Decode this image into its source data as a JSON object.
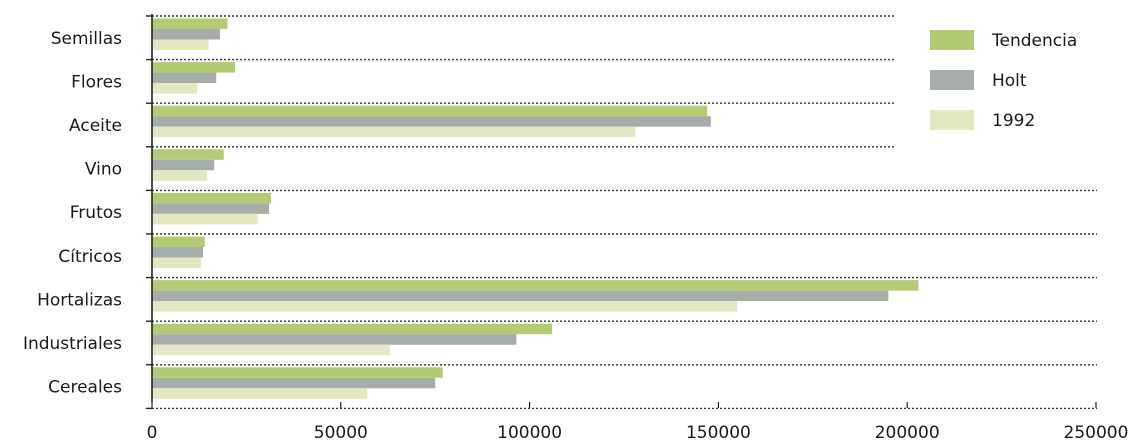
{
  "chart_data": {
    "type": "bar",
    "orientation": "horizontal",
    "categories": [
      "Semillas",
      "Flores",
      "Aceite",
      "Vino",
      "Frutos",
      "Cítricos",
      "Hortalizas",
      "Industriales",
      "Cereales"
    ],
    "series": [
      {
        "name": "Tendencia",
        "values": [
          20000,
          22000,
          147000,
          19000,
          31500,
          14000,
          203000,
          106000,
          77000
        ],
        "color": "#b3cc73"
      },
      {
        "name": "Holt",
        "values": [
          18000,
          17000,
          148000,
          16500,
          31000,
          13500,
          195000,
          96500,
          75000
        ],
        "color": "#a7adaa"
      },
      {
        "name": "1992",
        "values": [
          15000,
          12000,
          128000,
          14500,
          28000,
          13000,
          155000,
          63000,
          57000
        ],
        "color": "#e4e8c0"
      }
    ],
    "x_ticks": [
      "0",
      "50000",
      "100000",
      "150000",
      "200000",
      "250000"
    ],
    "xlim": [
      0,
      250000
    ],
    "grid": "dotted horizontal separators between categories",
    "legend_position": "top-right"
  }
}
